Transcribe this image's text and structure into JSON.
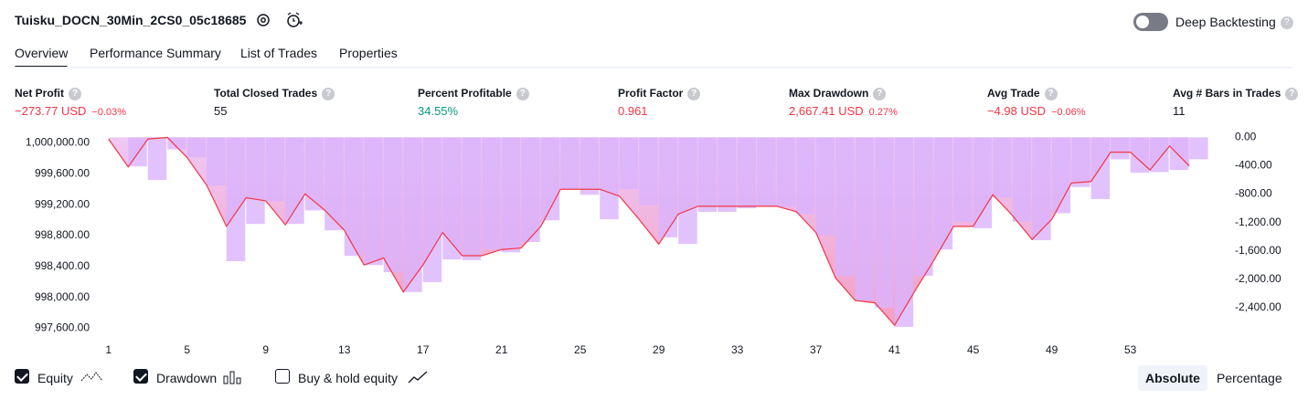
{
  "header": {
    "title": "Tuisku_DOCN_30Min_2CS0_05c18685",
    "toggle_label": "Deep Backtesting"
  },
  "tabs": [
    "Overview",
    "Performance Summary",
    "List of Trades",
    "Properties"
  ],
  "metrics": [
    {
      "label": "Net Profit",
      "value": "−273.77 USD",
      "sub": "−0.03%",
      "color": "#f23645"
    },
    {
      "label": "Total Closed Trades",
      "value": "55",
      "color": "#131722"
    },
    {
      "label": "Percent Profitable",
      "value": "34.55%",
      "color": "#089981"
    },
    {
      "label": "Profit Factor",
      "value": "0.961",
      "color": "#f23645"
    },
    {
      "label": "Max Drawdown",
      "value": "2,667.41 USD",
      "sub": "0.27%",
      "color": "#f23645"
    },
    {
      "label": "Avg Trade",
      "value": "−4.98 USD",
      "sub": "−0.06%",
      "color": "#f23645"
    },
    {
      "label": "Avg # Bars in Trades",
      "value": "11",
      "color": "#131722"
    }
  ],
  "chart_data": {
    "type": "line",
    "x": [
      1,
      2,
      3,
      4,
      5,
      6,
      7,
      8,
      9,
      10,
      11,
      12,
      13,
      14,
      15,
      16,
      17,
      18,
      19,
      20,
      21,
      22,
      23,
      24,
      25,
      26,
      27,
      28,
      29,
      30,
      31,
      32,
      33,
      34,
      35,
      36,
      37,
      38,
      39,
      40,
      41,
      42,
      43,
      44,
      45,
      46,
      47,
      48,
      49,
      50,
      51,
      52,
      53,
      54,
      55,
      56
    ],
    "xlim": [
      0.5,
      57.9
    ],
    "xticks": [
      1,
      5,
      9,
      13,
      17,
      21,
      25,
      29,
      33,
      37,
      41,
      45,
      49,
      53
    ],
    "ylim": [
      997500,
      1000100
    ],
    "yticks": [
      {
        "value": 1000000,
        "label": "1,000,000.00"
      },
      {
        "value": 999600,
        "label": "999,600.00"
      },
      {
        "value": 999200,
        "label": "999,200.00"
      },
      {
        "value": 998800,
        "label": "998,800.00"
      },
      {
        "value": 998400,
        "label": "998,400.00"
      },
      {
        "value": 998000,
        "label": "998,000.00"
      },
      {
        "value": 997600,
        "label": "997,600.00"
      }
    ],
    "y2lim": [
      -2800,
      30
    ],
    "y2ticks": [
      {
        "value": 0,
        "label": "0.00"
      },
      {
        "value": -400,
        "label": "-400.00"
      },
      {
        "value": -800,
        "label": "-800.00"
      },
      {
        "value": -1200,
        "label": "-1,200.00"
      },
      {
        "value": -1600,
        "label": "-1,600.00"
      },
      {
        "value": -2000,
        "label": "-2,000.00"
      },
      {
        "value": -2400,
        "label": "-2,400.00"
      }
    ],
    "series": [
      {
        "name": "Equity",
        "color": "#f23645",
        "values": [
          1000050,
          999690,
          1000050,
          1000070,
          999810,
          999450,
          998920,
          999290,
          999250,
          998940,
          999340,
          999130,
          998870,
          998420,
          998510,
          998070,
          998420,
          998840,
          998540,
          998540,
          998620,
          998640,
          998920,
          999400,
          999400,
          999400,
          999310,
          999010,
          998690,
          999080,
          999180,
          999180,
          999180,
          999180,
          999180,
          999110,
          998840,
          998250,
          997960,
          997930,
          997640,
          998070,
          998480,
          998920,
          998920,
          999330,
          999060,
          998750,
          999010,
          999480,
          999500,
          999880,
          999880,
          999650,
          999960,
          999700
        ]
      },
      {
        "name": "Drawdown",
        "color": "#d9b3fc",
        "axis": "y2",
        "values": [
          0,
          -410,
          -600,
          -170,
          -280,
          -680,
          -1745,
          -1220,
          -900,
          -1220,
          -1030,
          -1310,
          -1670,
          -1800,
          -1900,
          -2180,
          -2040,
          -1720,
          -1730,
          -1580,
          -1620,
          -1475,
          -1170,
          -730,
          -810,
          -1155,
          -730,
          -960,
          -1410,
          -1500,
          -1050,
          -1050,
          -1000,
          -980,
          -980,
          -1080,
          -1380,
          -1950,
          -2300,
          -2400,
          -2670,
          -1950,
          -1580,
          -1190,
          -1280,
          -850,
          -1190,
          -1450,
          -1070,
          -700,
          -870,
          -310,
          -500,
          -490,
          -460,
          -310
        ]
      }
    ]
  },
  "controls": {
    "buy_hold": "Buy & hold equity",
    "modes": [
      "Absolute",
      "Percentage"
    ]
  }
}
